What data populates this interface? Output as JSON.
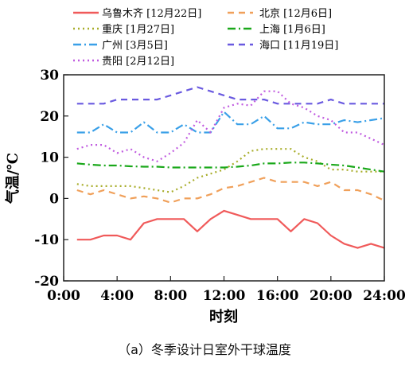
{
  "caption": "（a）冬季设计日室外干球温度",
  "chart_data": {
    "type": "line",
    "xlabel": "时刻",
    "ylabel": "气温/℃",
    "x_ticks": [
      "0:00",
      "4:00",
      "8:00",
      "12:00",
      "16:00",
      "20:00",
      "24:00"
    ],
    "y_ticks": [
      "-20",
      "-10",
      "0",
      "10",
      "20",
      "30"
    ],
    "xlim": [
      0,
      24
    ],
    "ylim": [
      -20,
      30
    ],
    "grid": false,
    "legend": "top",
    "x": [
      1,
      2,
      3,
      4,
      5,
      6,
      7,
      8,
      9,
      10,
      11,
      12,
      13,
      14,
      15,
      16,
      17,
      18,
      19,
      20,
      21,
      22,
      23,
      24
    ],
    "series": [
      {
        "name": "乌鲁木齐 [12月22日]",
        "color": "#f05a5a",
        "dash": "solid",
        "values": [
          -10,
          -10,
          -9,
          -9,
          -10,
          -6,
          -5,
          -5,
          -5,
          -8,
          -5,
          -3,
          -4,
          -5,
          -5,
          -5,
          -8,
          -5,
          -6,
          -9,
          -11,
          -12,
          -11,
          -12
        ]
      },
      {
        "name": "北京 [12月6日]",
        "color": "#f0a05a",
        "dash": "dash",
        "values": [
          2,
          1,
          2,
          1,
          0,
          0.5,
          0,
          -1,
          0,
          0,
          1,
          2.5,
          3,
          4,
          5,
          4,
          4,
          4,
          3,
          4,
          2,
          2,
          1,
          -0.5
        ]
      },
      {
        "name": "重庆 [1月27日]",
        "color": "#a8ad2a",
        "dash": "dot",
        "values": [
          3.5,
          3,
          3,
          3,
          3,
          2.5,
          2,
          1.5,
          3,
          5,
          6,
          7,
          9,
          11.5,
          12,
          12,
          12,
          10,
          9,
          7,
          7,
          6.5,
          6.5,
          6.5
        ]
      },
      {
        "name": "上海 [1月6日]",
        "color": "#1aa81a",
        "dash": "dashdot",
        "values": [
          8.5,
          8.2,
          8,
          8,
          7.8,
          7.7,
          7.7,
          7.5,
          7.5,
          7.5,
          7.5,
          7.5,
          7.7,
          8,
          8.5,
          8.5,
          8.7,
          8.7,
          8.5,
          8.2,
          8,
          7.5,
          7,
          6.5
        ]
      },
      {
        "name": "广州 [3月5日]",
        "color": "#3aa0e8",
        "dash": "dashdot",
        "values": [
          16,
          16,
          18,
          16,
          16,
          18.5,
          16,
          16,
          18,
          16,
          16,
          21,
          18,
          18,
          20,
          17,
          17,
          18.5,
          18,
          18,
          19,
          18.5,
          19,
          19.5
        ]
      },
      {
        "name": "海口 [11月19日]",
        "color": "#6a5ae0",
        "dash": "dash",
        "values": [
          23,
          23,
          23,
          24,
          24,
          24,
          24,
          25,
          26,
          27,
          26,
          25,
          24,
          24,
          24,
          23,
          23,
          23,
          23,
          24,
          23,
          23,
          23,
          23
        ]
      },
      {
        "name": "贵阳 [2月12日]",
        "color": "#c05ae0",
        "dash": "dot",
        "values": [
          12,
          13,
          13,
          11,
          12,
          10,
          9,
          11,
          13.5,
          19,
          16,
          22,
          23,
          22.5,
          26,
          26,
          23,
          22,
          20,
          19,
          16,
          16,
          14.5,
          13
        ]
      }
    ]
  }
}
